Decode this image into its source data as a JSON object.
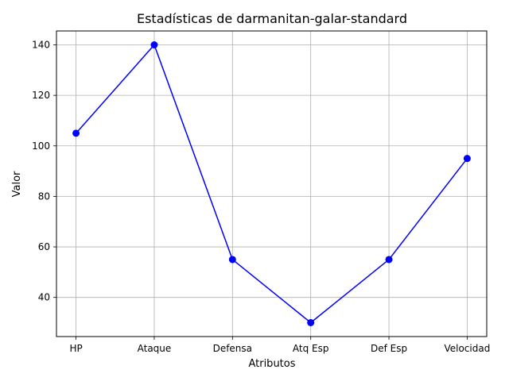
{
  "chart_data": {
    "type": "line",
    "title": "Estadísticas de darmanitan-galar-standard",
    "xlabel": "Atributos",
    "ylabel": "Valor",
    "categories": [
      "HP",
      "Ataque",
      "Defensa",
      "Atq Esp",
      "Def Esp",
      "Velocidad"
    ],
    "series": [
      {
        "values": [
          105,
          140,
          55,
          30,
          55,
          95
        ]
      }
    ],
    "ylim": [
      24.5,
      145.5
    ],
    "yticks": [
      40,
      60,
      80,
      100,
      120,
      140
    ],
    "grid": true,
    "marker": "circle",
    "color": "#0000ff"
  }
}
